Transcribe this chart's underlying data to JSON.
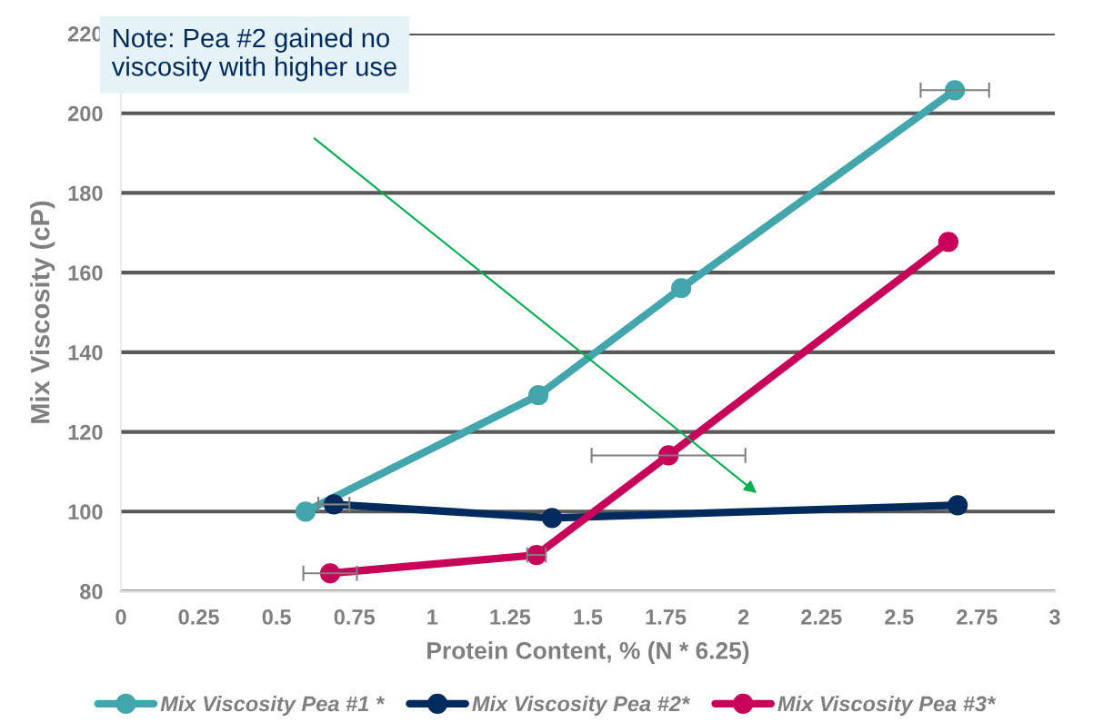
{
  "chart_data": {
    "type": "line",
    "xlabel": "Protein Content, % (N * 6.25)",
    "ylabel": "Mix Viscosity (cP)",
    "xlim": [
      0,
      3
    ],
    "xticks": [
      0,
      0.25,
      0.5,
      0.75,
      1,
      1.25,
      1.5,
      1.75,
      2,
      2.25,
      2.5,
      2.75,
      3
    ],
    "ylim": [
      80,
      220
    ],
    "yticks": [
      80,
      100,
      120,
      140,
      160,
      180,
      200,
      220
    ],
    "grid": "y",
    "legend": "bottom",
    "marker": "circle",
    "line_style": "solid",
    "series": [
      {
        "name": "Mix Viscosity Pea #1 *",
        "color": "#44a6ad",
        "x": [
          0.593,
          1.341,
          1.8,
          2.679
        ],
        "values": [
          100,
          129.2,
          156.1,
          205.8
        ],
        "xerrors": [
          null,
          null,
          null,
          0.11
        ]
      },
      {
        "name": "Mix Viscosity Pea #2*",
        "color": "#002b5c",
        "x": [
          0.684,
          1.385,
          2.688
        ],
        "values": [
          101.8,
          98.4,
          101.6
        ],
        "xerrors": [
          0.05,
          null,
          null
        ]
      },
      {
        "name": "Mix Viscosity Pea #3*",
        "color": "#c8005a",
        "x": [
          0.672,
          1.335,
          1.759,
          2.658
        ],
        "values": [
          84.5,
          89.1,
          114.1,
          167.7
        ],
        "xerrors": [
          0.086,
          0.03,
          0.247,
          null
        ]
      }
    ],
    "annotations": [
      "Note: Pea #2 gained no\nviscosity with higher use"
    ]
  }
}
